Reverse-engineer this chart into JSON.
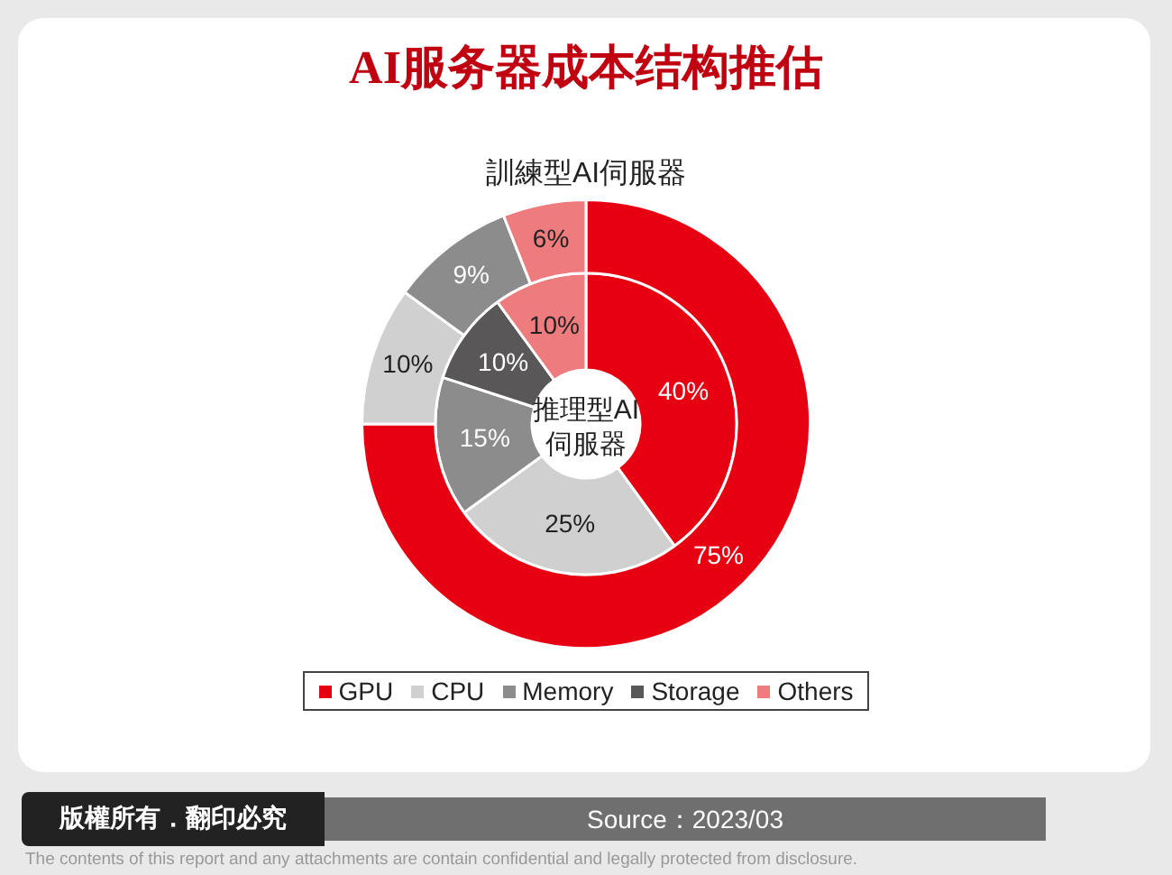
{
  "chart_data": {
    "type": "donut",
    "title": "AI服务器成本结构推估",
    "categories": [
      "GPU",
      "CPU",
      "Memory",
      "Storage",
      "Others"
    ],
    "colors": [
      "#e60012",
      "#d0d0d0",
      "#8c8c8c",
      "#595757",
      "#ee7b7e"
    ],
    "series": [
      {
        "name": "訓練型AI伺服器",
        "values": [
          75,
          10,
          9,
          null,
          6
        ],
        "value_labels": [
          "75%",
          "10%",
          "9%",
          null,
          "6%"
        ]
      },
      {
        "name": "推理型AI伺服器",
        "values": [
          40,
          25,
          15,
          10,
          10
        ],
        "value_labels": [
          "40%",
          "25%",
          "15%",
          "10%",
          "10%"
        ]
      }
    ],
    "legend": "bottom",
    "annotations": [
      "版權所有．翻印必究",
      "Source：2023/03",
      "The contents of this report and any attachments are contain confidential and legally protected from disclosure."
    ]
  }
}
